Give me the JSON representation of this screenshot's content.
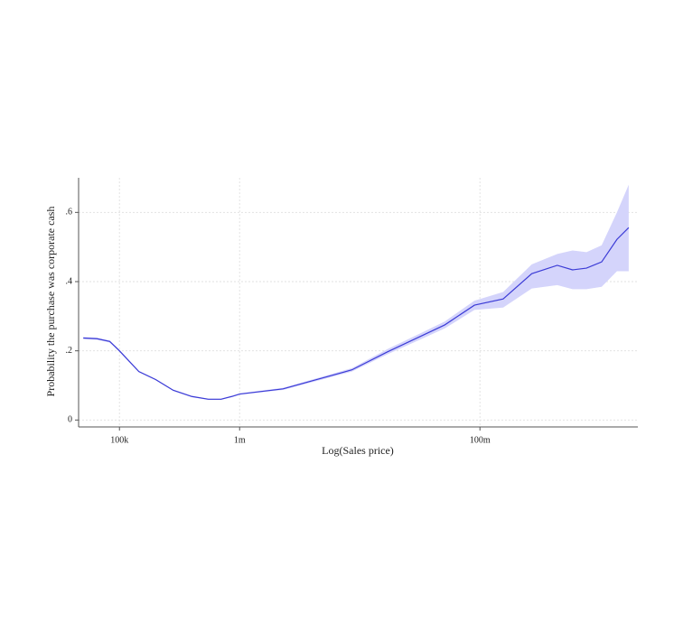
{
  "chart_data": {
    "type": "line",
    "xlabel": "Log(Sales price)",
    "ylabel": "Probability the purchase was corporate cash",
    "x": [
      50000,
      65000,
      83000,
      100000,
      145000,
      200000,
      280000,
      400000,
      550000,
      700000,
      860000,
      1000000,
      2300000,
      4400000,
      8600000,
      17000000,
      33000000,
      51000000,
      90000000,
      156000000,
      270000000,
      440000000,
      590000000,
      770000000,
      1030000000,
      1380000000,
      1730000000
    ],
    "series": [
      {
        "color": "#3b3bd6",
        "band_color": "#d4d4fb",
        "values": [
          0.237,
          0.235,
          0.227,
          0.2,
          0.14,
          0.117,
          0.086,
          0.068,
          0.06,
          0.06,
          0.068,
          0.075,
          0.09,
          0.117,
          0.145,
          0.197,
          0.244,
          0.275,
          0.332,
          0.35,
          0.423,
          0.447,
          0.434,
          0.439,
          0.457,
          0.522,
          0.556
        ],
        "ci_lower": [
          0.234,
          0.232,
          0.224,
          0.197,
          0.138,
          0.115,
          0.084,
          0.066,
          0.058,
          0.058,
          0.066,
          0.073,
          0.087,
          0.113,
          0.14,
          0.19,
          0.235,
          0.265,
          0.318,
          0.325,
          0.38,
          0.39,
          0.378,
          0.378,
          0.385,
          0.43,
          0.43
        ],
        "ci_upper": [
          0.24,
          0.238,
          0.23,
          0.203,
          0.142,
          0.119,
          0.088,
          0.07,
          0.062,
          0.062,
          0.07,
          0.077,
          0.093,
          0.121,
          0.15,
          0.205,
          0.253,
          0.285,
          0.345,
          0.37,
          0.45,
          0.48,
          0.49,
          0.485,
          0.505,
          0.6,
          0.68
        ]
      }
    ],
    "xscale": "log",
    "xlim": [
      45700,
      2060000000
    ],
    "xticks": [
      {
        "value": 100000,
        "label": "100k"
      },
      {
        "value": 1000000,
        "label": "1m"
      },
      {
        "value": 100000000,
        "label": "100m"
      }
    ],
    "ylim": [
      -0.02,
      0.7
    ],
    "yticks": [
      0,
      {
        "value": 0.2,
        "label": ".2"
      },
      {
        "value": 0.4,
        "label": ".4"
      },
      {
        "value": 0.6,
        "label": ".6"
      }
    ],
    "grid": true
  }
}
